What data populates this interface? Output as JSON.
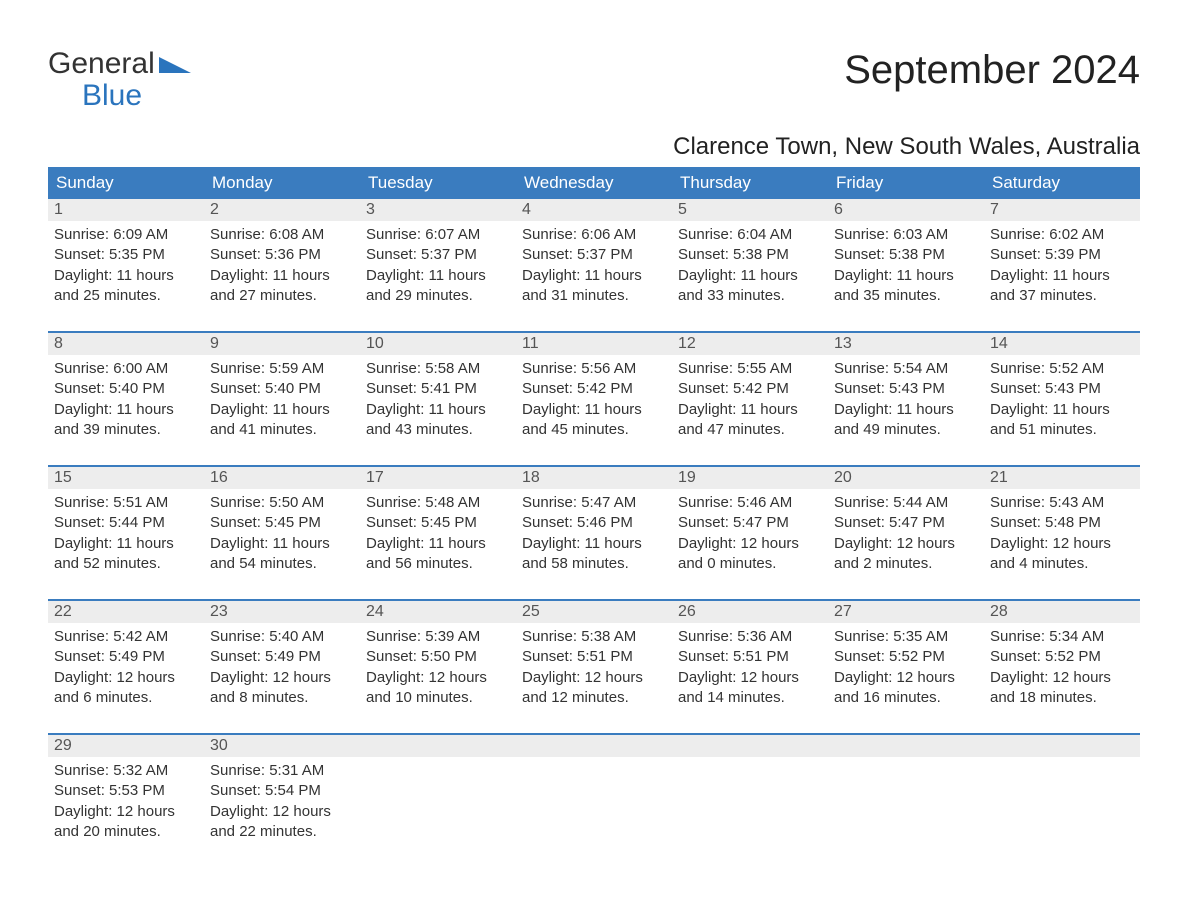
{
  "logo": {
    "line1": "General",
    "line2": "Blue",
    "logo_color": "#2a74bd"
  },
  "title": "September 2024",
  "location": "Clarence Town, New South Wales, Australia",
  "colors": {
    "header_bg": "#3a7cbf",
    "header_text": "#ffffff",
    "daynum_bg": "#ededed",
    "week_border": "#3a7cbf",
    "body_text": "#333333",
    "background": "#ffffff"
  },
  "typography": {
    "title_fontsize": 40,
    "location_fontsize": 24,
    "dayheader_fontsize": 17,
    "detail_fontsize": 15
  },
  "day_labels": [
    "Sunday",
    "Monday",
    "Tuesday",
    "Wednesday",
    "Thursday",
    "Friday",
    "Saturday"
  ],
  "weeks": [
    [
      {
        "n": "1",
        "sunrise": "Sunrise: 6:09 AM",
        "sunset": "Sunset: 5:35 PM",
        "dl1": "Daylight: 11 hours",
        "dl2": "and 25 minutes."
      },
      {
        "n": "2",
        "sunrise": "Sunrise: 6:08 AM",
        "sunset": "Sunset: 5:36 PM",
        "dl1": "Daylight: 11 hours",
        "dl2": "and 27 minutes."
      },
      {
        "n": "3",
        "sunrise": "Sunrise: 6:07 AM",
        "sunset": "Sunset: 5:37 PM",
        "dl1": "Daylight: 11 hours",
        "dl2": "and 29 minutes."
      },
      {
        "n": "4",
        "sunrise": "Sunrise: 6:06 AM",
        "sunset": "Sunset: 5:37 PM",
        "dl1": "Daylight: 11 hours",
        "dl2": "and 31 minutes."
      },
      {
        "n": "5",
        "sunrise": "Sunrise: 6:04 AM",
        "sunset": "Sunset: 5:38 PM",
        "dl1": "Daylight: 11 hours",
        "dl2": "and 33 minutes."
      },
      {
        "n": "6",
        "sunrise": "Sunrise: 6:03 AM",
        "sunset": "Sunset: 5:38 PM",
        "dl1": "Daylight: 11 hours",
        "dl2": "and 35 minutes."
      },
      {
        "n": "7",
        "sunrise": "Sunrise: 6:02 AM",
        "sunset": "Sunset: 5:39 PM",
        "dl1": "Daylight: 11 hours",
        "dl2": "and 37 minutes."
      }
    ],
    [
      {
        "n": "8",
        "sunrise": "Sunrise: 6:00 AM",
        "sunset": "Sunset: 5:40 PM",
        "dl1": "Daylight: 11 hours",
        "dl2": "and 39 minutes."
      },
      {
        "n": "9",
        "sunrise": "Sunrise: 5:59 AM",
        "sunset": "Sunset: 5:40 PM",
        "dl1": "Daylight: 11 hours",
        "dl2": "and 41 minutes."
      },
      {
        "n": "10",
        "sunrise": "Sunrise: 5:58 AM",
        "sunset": "Sunset: 5:41 PM",
        "dl1": "Daylight: 11 hours",
        "dl2": "and 43 minutes."
      },
      {
        "n": "11",
        "sunrise": "Sunrise: 5:56 AM",
        "sunset": "Sunset: 5:42 PM",
        "dl1": "Daylight: 11 hours",
        "dl2": "and 45 minutes."
      },
      {
        "n": "12",
        "sunrise": "Sunrise: 5:55 AM",
        "sunset": "Sunset: 5:42 PM",
        "dl1": "Daylight: 11 hours",
        "dl2": "and 47 minutes."
      },
      {
        "n": "13",
        "sunrise": "Sunrise: 5:54 AM",
        "sunset": "Sunset: 5:43 PM",
        "dl1": "Daylight: 11 hours",
        "dl2": "and 49 minutes."
      },
      {
        "n": "14",
        "sunrise": "Sunrise: 5:52 AM",
        "sunset": "Sunset: 5:43 PM",
        "dl1": "Daylight: 11 hours",
        "dl2": "and 51 minutes."
      }
    ],
    [
      {
        "n": "15",
        "sunrise": "Sunrise: 5:51 AM",
        "sunset": "Sunset: 5:44 PM",
        "dl1": "Daylight: 11 hours",
        "dl2": "and 52 minutes."
      },
      {
        "n": "16",
        "sunrise": "Sunrise: 5:50 AM",
        "sunset": "Sunset: 5:45 PM",
        "dl1": "Daylight: 11 hours",
        "dl2": "and 54 minutes."
      },
      {
        "n": "17",
        "sunrise": "Sunrise: 5:48 AM",
        "sunset": "Sunset: 5:45 PM",
        "dl1": "Daylight: 11 hours",
        "dl2": "and 56 minutes."
      },
      {
        "n": "18",
        "sunrise": "Sunrise: 5:47 AM",
        "sunset": "Sunset: 5:46 PM",
        "dl1": "Daylight: 11 hours",
        "dl2": "and 58 minutes."
      },
      {
        "n": "19",
        "sunrise": "Sunrise: 5:46 AM",
        "sunset": "Sunset: 5:47 PM",
        "dl1": "Daylight: 12 hours",
        "dl2": "and 0 minutes."
      },
      {
        "n": "20",
        "sunrise": "Sunrise: 5:44 AM",
        "sunset": "Sunset: 5:47 PM",
        "dl1": "Daylight: 12 hours",
        "dl2": "and 2 minutes."
      },
      {
        "n": "21",
        "sunrise": "Sunrise: 5:43 AM",
        "sunset": "Sunset: 5:48 PM",
        "dl1": "Daylight: 12 hours",
        "dl2": "and 4 minutes."
      }
    ],
    [
      {
        "n": "22",
        "sunrise": "Sunrise: 5:42 AM",
        "sunset": "Sunset: 5:49 PM",
        "dl1": "Daylight: 12 hours",
        "dl2": "and 6 minutes."
      },
      {
        "n": "23",
        "sunrise": "Sunrise: 5:40 AM",
        "sunset": "Sunset: 5:49 PM",
        "dl1": "Daylight: 12 hours",
        "dl2": "and 8 minutes."
      },
      {
        "n": "24",
        "sunrise": "Sunrise: 5:39 AM",
        "sunset": "Sunset: 5:50 PM",
        "dl1": "Daylight: 12 hours",
        "dl2": "and 10 minutes."
      },
      {
        "n": "25",
        "sunrise": "Sunrise: 5:38 AM",
        "sunset": "Sunset: 5:51 PM",
        "dl1": "Daylight: 12 hours",
        "dl2": "and 12 minutes."
      },
      {
        "n": "26",
        "sunrise": "Sunrise: 5:36 AM",
        "sunset": "Sunset: 5:51 PM",
        "dl1": "Daylight: 12 hours",
        "dl2": "and 14 minutes."
      },
      {
        "n": "27",
        "sunrise": "Sunrise: 5:35 AM",
        "sunset": "Sunset: 5:52 PM",
        "dl1": "Daylight: 12 hours",
        "dl2": "and 16 minutes."
      },
      {
        "n": "28",
        "sunrise": "Sunrise: 5:34 AM",
        "sunset": "Sunset: 5:52 PM",
        "dl1": "Daylight: 12 hours",
        "dl2": "and 18 minutes."
      }
    ],
    [
      {
        "n": "29",
        "sunrise": "Sunrise: 5:32 AM",
        "sunset": "Sunset: 5:53 PM",
        "dl1": "Daylight: 12 hours",
        "dl2": "and 20 minutes."
      },
      {
        "n": "30",
        "sunrise": "Sunrise: 5:31 AM",
        "sunset": "Sunset: 5:54 PM",
        "dl1": "Daylight: 12 hours",
        "dl2": "and 22 minutes."
      },
      {
        "n": "",
        "sunrise": "",
        "sunset": "",
        "dl1": "",
        "dl2": ""
      },
      {
        "n": "",
        "sunrise": "",
        "sunset": "",
        "dl1": "",
        "dl2": ""
      },
      {
        "n": "",
        "sunrise": "",
        "sunset": "",
        "dl1": "",
        "dl2": ""
      },
      {
        "n": "",
        "sunrise": "",
        "sunset": "",
        "dl1": "",
        "dl2": ""
      },
      {
        "n": "",
        "sunrise": "",
        "sunset": "",
        "dl1": "",
        "dl2": ""
      }
    ]
  ]
}
